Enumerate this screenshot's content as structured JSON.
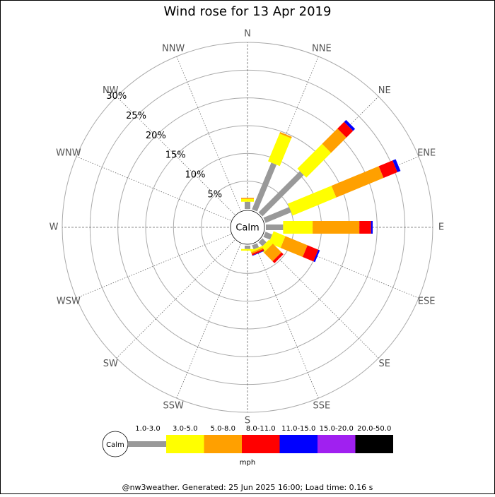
{
  "chart_data": {
    "type": "windrose",
    "title": "Wind rose for 13 Apr 2019",
    "calm_label": "Calm",
    "categories": [
      "N",
      "NNE",
      "NE",
      "ENE",
      "E",
      "ESE",
      "SE",
      "SSE",
      "S",
      "SSW",
      "SW",
      "WSW",
      "W",
      "WNW",
      "NW",
      "NNW"
    ],
    "series": [
      {
        "name": "1.0-3.0",
        "color": "#999999",
        "values": [
          1.3,
          9.1,
          10.5,
          5.0,
          3.1,
          1.3,
          1.0,
          0.8,
          0.6,
          0,
          0,
          0,
          0,
          0,
          0,
          0
        ]
      },
      {
        "name": "3.0-5.0",
        "color": "#ffff00",
        "values": [
          0.5,
          5.4,
          6.3,
          8.5,
          5.3,
          2.3,
          1.0,
          0.3,
          0.3,
          0,
          0,
          0,
          0,
          0,
          0,
          0
        ]
      },
      {
        "name": "5.0-8.0",
        "color": "#ffa000",
        "values": [
          0.2,
          0.3,
          3.9,
          9.2,
          8.4,
          4.3,
          2.2,
          0.3,
          0,
          0,
          0,
          0,
          0,
          0,
          0,
          0
        ]
      },
      {
        "name": "8.0-11.0",
        "color": "#ff0000",
        "values": [
          0,
          0,
          1.7,
          2.7,
          2.1,
          2.1,
          0.5,
          0.3,
          0,
          0,
          0,
          0,
          0,
          0,
          0,
          0
        ]
      },
      {
        "name": "11.0-15.0",
        "color": "#0000ff",
        "values": [
          0,
          0,
          0.5,
          0.6,
          0.3,
          0.3,
          0,
          0.1,
          0,
          0,
          0,
          0,
          0,
          0,
          0,
          0
        ]
      },
      {
        "name": "15.0-20.0",
        "color": "#a020f0",
        "values": [
          0,
          0,
          0,
          0,
          0,
          0,
          0,
          0,
          0,
          0,
          0,
          0,
          0,
          0,
          0,
          0
        ]
      },
      {
        "name": "20.0-50.0",
        "color": "#000000",
        "values": [
          0,
          0,
          0,
          0,
          0,
          0,
          0,
          0,
          0,
          0,
          0,
          0,
          0,
          0,
          0,
          0
        ]
      }
    ],
    "rlim": [
      0,
      30
    ],
    "rticks": [
      {
        "value": 5,
        "label": "5%"
      },
      {
        "value": 10,
        "label": "10%"
      },
      {
        "value": 15,
        "label": "15%"
      },
      {
        "value": 20,
        "label": "20%"
      },
      {
        "value": 25,
        "label": "25%"
      },
      {
        "value": 30,
        "label": "30%"
      }
    ],
    "legend_title": "mph",
    "footer": "@nw3weather. Generated: 25 Jun 2025 16:00; Load time: 0.16 s"
  }
}
